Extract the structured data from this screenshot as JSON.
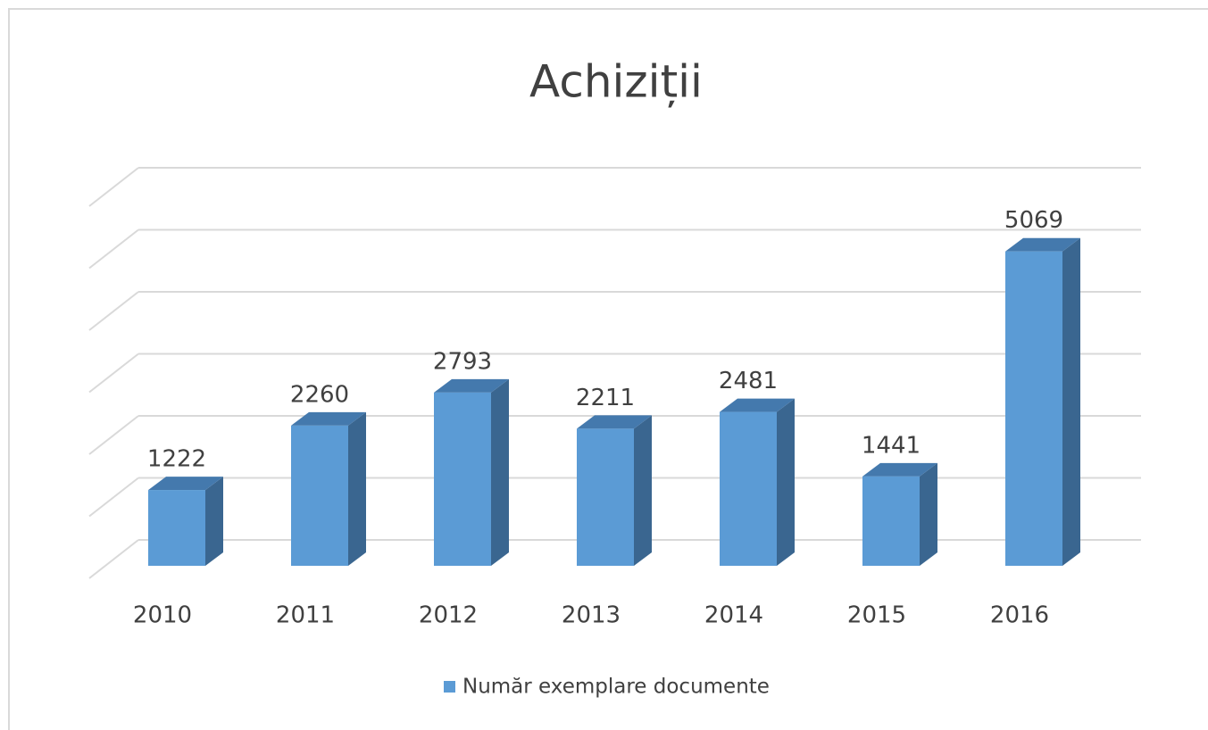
{
  "chart_data": {
    "type": "bar3d",
    "title": "Achiziții",
    "categories": [
      "2010",
      "2011",
      "2012",
      "2013",
      "2014",
      "2015",
      "2016"
    ],
    "series": [
      {
        "name": "Număr exemplare documente",
        "color": "#5b9bd5",
        "values": [
          1222,
          2260,
          2793,
          2211,
          2481,
          1441,
          5069
        ]
      }
    ],
    "ylim": [
      0,
      6000
    ],
    "yticks": [
      0,
      1000,
      2000,
      3000,
      4000,
      5000,
      6000
    ],
    "grid": true,
    "legend": "bottom"
  }
}
